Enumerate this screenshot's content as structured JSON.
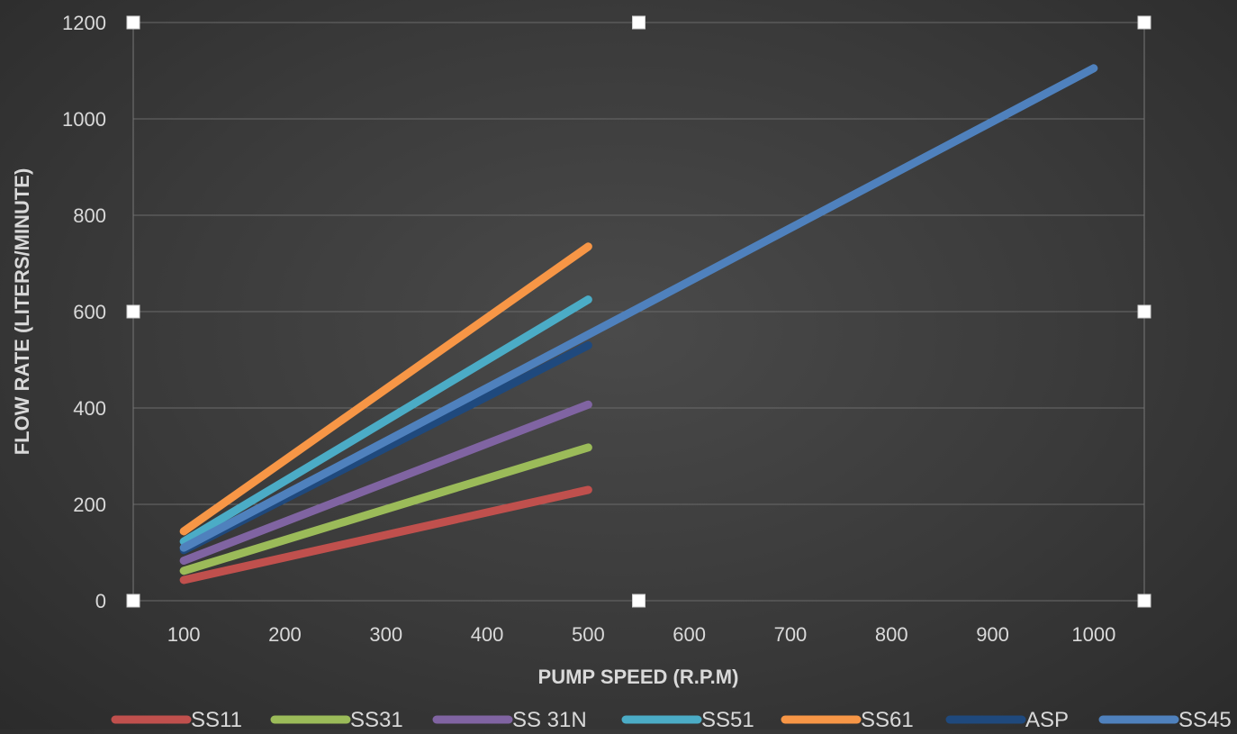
{
  "chart_data": {
    "type": "line",
    "title": "",
    "xlabel": "PUMP SPEED (R.P.M)",
    "ylabel": "FLOW RATE (LITERS/MINUTE)",
    "x_ticks": [
      100,
      200,
      300,
      400,
      500,
      600,
      700,
      800,
      900,
      1000
    ],
    "y_ticks": [
      0,
      200,
      400,
      600,
      800,
      1000,
      1200
    ],
    "xlim": [
      50,
      1050
    ],
    "ylim": [
      0,
      1200
    ],
    "grid": "horizontal",
    "legend_position": "bottom",
    "series": [
      {
        "name": "SS11",
        "color": "#c0504d",
        "x": [
          100,
          500
        ],
        "y": [
          43,
          230
        ]
      },
      {
        "name": "SS31",
        "color": "#9bbb59",
        "x": [
          100,
          500
        ],
        "y": [
          62,
          318
        ]
      },
      {
        "name": "SS 31N",
        "color": "#8064a2",
        "x": [
          100,
          500
        ],
        "y": [
          83,
          407
        ]
      },
      {
        "name": "SS51",
        "color": "#4bacc6",
        "x": [
          100,
          500
        ],
        "y": [
          123,
          625
        ]
      },
      {
        "name": "SS61",
        "color": "#f79646",
        "x": [
          100,
          500
        ],
        "y": [
          144,
          735
        ]
      },
      {
        "name": "ASP",
        "color": "#1f497d",
        "x": [
          100,
          500
        ],
        "y": [
          105,
          530
        ]
      },
      {
        "name": "SS45",
        "color": "#4f81bd",
        "x": [
          100,
          1000
        ],
        "y": [
          110,
          1105
        ]
      }
    ]
  }
}
